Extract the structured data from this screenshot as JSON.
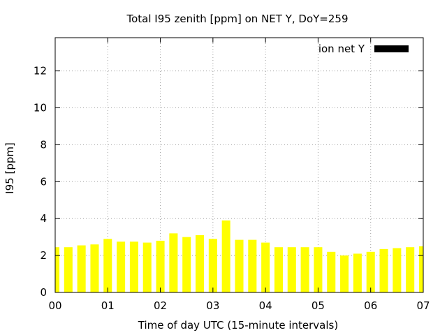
{
  "chart_data": {
    "type": "bar",
    "title": "Total I95 zenith [ppm] on NET Y, DoY=259",
    "xlabel": "Time of day UTC (15-minute intervals)",
    "ylabel": "I95 [ppm]",
    "x_range": [
      0,
      7
    ],
    "ylim": [
      0,
      13.8
    ],
    "x_ticks": [
      {
        "value": 0,
        "label": "00"
      },
      {
        "value": 1,
        "label": "01"
      },
      {
        "value": 2,
        "label": "02"
      },
      {
        "value": 3,
        "label": "03"
      },
      {
        "value": 4,
        "label": "04"
      },
      {
        "value": 5,
        "label": "05"
      },
      {
        "value": 6,
        "label": "06"
      },
      {
        "value": 7,
        "label": "07"
      }
    ],
    "y_ticks": [
      {
        "value": 0,
        "label": "0"
      },
      {
        "value": 2,
        "label": "2"
      },
      {
        "value": 4,
        "label": "4"
      },
      {
        "value": 6,
        "label": "6"
      },
      {
        "value": 8,
        "label": "8"
      },
      {
        "value": 10,
        "label": "10"
      },
      {
        "value": 12,
        "label": "12"
      }
    ],
    "grid": true,
    "legend_position": "top-right",
    "bar_color": "#ffff00",
    "legend_swatch_color": "#000000",
    "series": [
      {
        "name": "ion net Y",
        "x": [
          0.0,
          0.25,
          0.5,
          0.75,
          1.0,
          1.25,
          1.5,
          1.75,
          2.0,
          2.25,
          2.5,
          2.75,
          3.0,
          3.25,
          3.5,
          3.75,
          4.0,
          4.25,
          4.5,
          4.75,
          5.0,
          5.25,
          5.5,
          5.75,
          6.0,
          6.25,
          6.5,
          6.75,
          7.0
        ],
        "values": [
          2.45,
          2.45,
          2.55,
          2.6,
          2.9,
          2.75,
          2.75,
          2.7,
          2.8,
          3.2,
          3.0,
          3.1,
          2.9,
          3.9,
          2.85,
          2.85,
          2.7,
          2.45,
          2.45,
          2.45,
          2.45,
          2.2,
          2.0,
          2.1,
          2.2,
          2.35,
          2.4,
          2.45,
          2.5
        ]
      }
    ]
  }
}
